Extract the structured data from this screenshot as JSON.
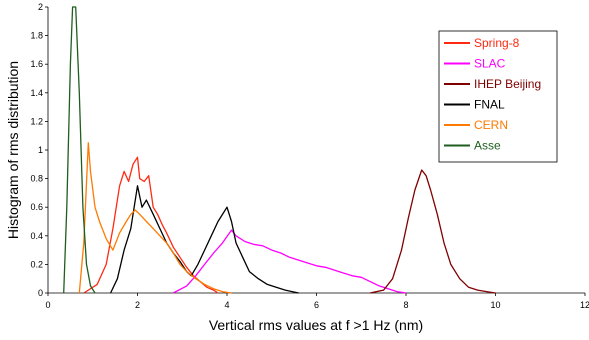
{
  "chart_data": {
    "type": "line",
    "title": "",
    "xlabel": "Vertical rms values at f >1 Hz (nm)",
    "ylabel": "Histogram of rms distribution",
    "xlim": [
      0,
      12
    ],
    "ylim": [
      0,
      2
    ],
    "x_ticks": [
      0,
      2,
      4,
      6,
      8,
      10,
      12
    ],
    "y_ticks": [
      0,
      0.2,
      0.4,
      0.6,
      0.8,
      1,
      1.2,
      1.4,
      1.6,
      1.8,
      2
    ],
    "grid": false,
    "legend_position": "top-right",
    "series": [
      {
        "name": "Spring-8",
        "color": "#ff2a12",
        "points": [
          [
            0.8,
            0
          ],
          [
            1.1,
            0.06
          ],
          [
            1.3,
            0.2
          ],
          [
            1.45,
            0.45
          ],
          [
            1.6,
            0.75
          ],
          [
            1.7,
            0.85
          ],
          [
            1.8,
            0.78
          ],
          [
            1.9,
            0.9
          ],
          [
            2.0,
            0.95
          ],
          [
            2.05,
            0.8
          ],
          [
            2.15,
            0.78
          ],
          [
            2.25,
            0.82
          ],
          [
            2.35,
            0.6
          ],
          [
            2.45,
            0.55
          ],
          [
            2.55,
            0.48
          ],
          [
            2.65,
            0.42
          ],
          [
            2.8,
            0.32
          ],
          [
            2.95,
            0.25
          ],
          [
            3.1,
            0.18
          ],
          [
            3.25,
            0.12
          ],
          [
            3.4,
            0.08
          ],
          [
            3.55,
            0.04
          ],
          [
            3.7,
            0.02
          ],
          [
            3.8,
            0
          ]
        ]
      },
      {
        "name": "SLAC",
        "color": "#ff00ff",
        "points": [
          [
            2.8,
            0
          ],
          [
            3.1,
            0.05
          ],
          [
            3.3,
            0.12
          ],
          [
            3.5,
            0.2
          ],
          [
            3.7,
            0.28
          ],
          [
            3.9,
            0.35
          ],
          [
            4.1,
            0.44
          ],
          [
            4.2,
            0.4
          ],
          [
            4.4,
            0.36
          ],
          [
            4.6,
            0.34
          ],
          [
            4.8,
            0.33
          ],
          [
            5.0,
            0.3
          ],
          [
            5.2,
            0.28
          ],
          [
            5.4,
            0.25
          ],
          [
            5.6,
            0.23
          ],
          [
            5.8,
            0.21
          ],
          [
            6.0,
            0.19
          ],
          [
            6.2,
            0.18
          ],
          [
            6.4,
            0.16
          ],
          [
            6.6,
            0.14
          ],
          [
            6.8,
            0.12
          ],
          [
            7.0,
            0.11
          ],
          [
            7.2,
            0.08
          ],
          [
            7.4,
            0.05
          ],
          [
            7.6,
            0.03
          ],
          [
            7.8,
            0.01
          ],
          [
            8.0,
            0
          ]
        ]
      },
      {
        "name": "IHEP Beijing",
        "color": "#800000",
        "points": [
          [
            7.2,
            0
          ],
          [
            7.5,
            0.02
          ],
          [
            7.7,
            0.1
          ],
          [
            7.9,
            0.3
          ],
          [
            8.05,
            0.52
          ],
          [
            8.2,
            0.72
          ],
          [
            8.35,
            0.86
          ],
          [
            8.45,
            0.82
          ],
          [
            8.55,
            0.72
          ],
          [
            8.7,
            0.55
          ],
          [
            8.85,
            0.35
          ],
          [
            9.0,
            0.2
          ],
          [
            9.2,
            0.1
          ],
          [
            9.4,
            0.04
          ],
          [
            9.6,
            0.02
          ],
          [
            9.8,
            0.01
          ],
          [
            10.0,
            0
          ]
        ]
      },
      {
        "name": "FNAL",
        "color": "#000000",
        "points": [
          [
            1.4,
            0
          ],
          [
            1.55,
            0.1
          ],
          [
            1.7,
            0.3
          ],
          [
            1.85,
            0.45
          ],
          [
            2.0,
            0.75
          ],
          [
            2.1,
            0.6
          ],
          [
            2.2,
            0.65
          ],
          [
            2.35,
            0.55
          ],
          [
            2.5,
            0.45
          ],
          [
            2.65,
            0.35
          ],
          [
            2.8,
            0.28
          ],
          [
            2.95,
            0.22
          ],
          [
            3.1,
            0.15
          ],
          [
            3.2,
            0.12
          ],
          [
            3.35,
            0.2
          ],
          [
            3.5,
            0.3
          ],
          [
            3.65,
            0.4
          ],
          [
            3.8,
            0.5
          ],
          [
            4.0,
            0.6
          ],
          [
            4.1,
            0.5
          ],
          [
            4.2,
            0.35
          ],
          [
            4.35,
            0.25
          ],
          [
            4.5,
            0.15
          ],
          [
            4.7,
            0.1
          ],
          [
            4.9,
            0.06
          ],
          [
            5.1,
            0.04
          ],
          [
            5.3,
            0.02
          ],
          [
            5.6,
            0
          ]
        ]
      },
      {
        "name": "CERN",
        "color": "#ff7a00",
        "points": [
          [
            0.7,
            0
          ],
          [
            0.8,
            0.35
          ],
          [
            0.9,
            1.05
          ],
          [
            0.95,
            0.85
          ],
          [
            1.05,
            0.6
          ],
          [
            1.15,
            0.5
          ],
          [
            1.3,
            0.38
          ],
          [
            1.45,
            0.3
          ],
          [
            1.6,
            0.42
          ],
          [
            1.75,
            0.5
          ],
          [
            1.85,
            0.55
          ],
          [
            1.95,
            0.58
          ],
          [
            2.05,
            0.55
          ],
          [
            2.2,
            0.5
          ],
          [
            2.35,
            0.45
          ],
          [
            2.5,
            0.4
          ],
          [
            2.65,
            0.35
          ],
          [
            2.8,
            0.28
          ],
          [
            2.95,
            0.2
          ],
          [
            3.1,
            0.15
          ],
          [
            3.3,
            0.1
          ],
          [
            3.5,
            0.06
          ],
          [
            3.7,
            0.03
          ],
          [
            3.9,
            0.01
          ],
          [
            4.1,
            0
          ]
        ]
      },
      {
        "name": "Asse",
        "color": "#1f5e1f",
        "points": [
          [
            0.35,
            0
          ],
          [
            0.42,
            0.6
          ],
          [
            0.5,
            1.6
          ],
          [
            0.55,
            2.0
          ],
          [
            0.62,
            2.0
          ],
          [
            0.7,
            1.4
          ],
          [
            0.78,
            0.6
          ],
          [
            0.86,
            0.2
          ],
          [
            0.95,
            0.05
          ],
          [
            1.05,
            0
          ]
        ]
      }
    ]
  }
}
